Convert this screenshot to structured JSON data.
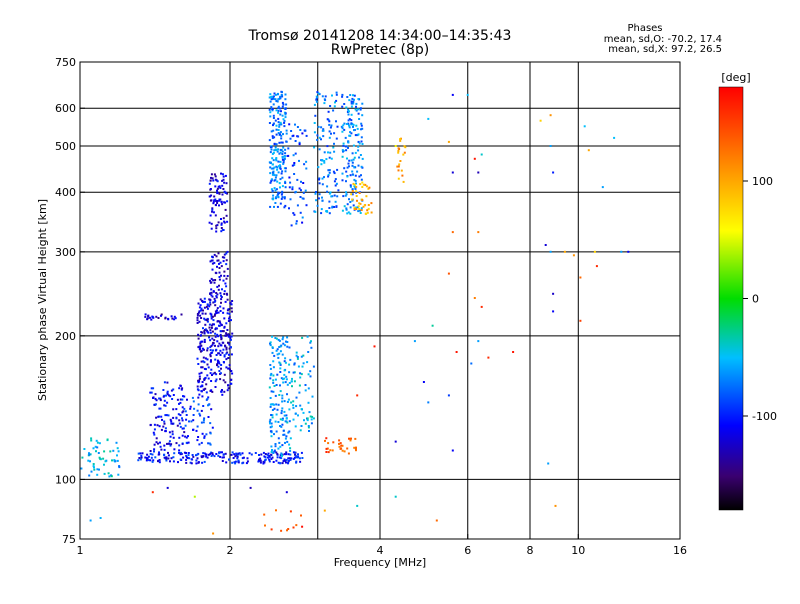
{
  "chart_data": {
    "type": "scatter",
    "title": "Tromsø 20141208 14:34:00–14:35:43",
    "subtitle": "RwPretec (8p)",
    "xlabel": "Frequency [MHz]",
    "ylabel": "Stationary phase Virtual Height [km]",
    "x_scale": "log",
    "y_scale": "log",
    "xlim": [
      1,
      16
    ],
    "ylim": [
      75,
      750
    ],
    "x_ticks": [
      1,
      2,
      4,
      6,
      8,
      10,
      16
    ],
    "x_tick_labels": [
      "1",
      "2",
      "4",
      "6",
      "8",
      "10",
      "16"
    ],
    "x_gridlines": [
      2,
      3,
      4,
      6,
      8,
      10
    ],
    "y_ticks": [
      75,
      100,
      200,
      300,
      400,
      500,
      600,
      750
    ],
    "y_tick_labels": [
      "75",
      "100",
      "200",
      "300",
      "400",
      "500",
      "600",
      "750"
    ],
    "y_gridlines": [
      100,
      200,
      300,
      400,
      500,
      600
    ],
    "grid": true,
    "phase_info": {
      "heading": "Phases",
      "line_o": "mean, sd,O: -70.2, 17.4",
      "line_x": "mean, sd,X:  97.2, 26.5"
    },
    "colorbar": {
      "label": "[deg]",
      "range": [
        -180,
        180
      ],
      "ticks": [
        100,
        0,
        -100
      ],
      "tick_labels": [
        "100",
        "0",
        "-100"
      ],
      "colormap": "rainbow"
    },
    "clusters": [
      {
        "x": [
          1.0,
          1.2
        ],
        "y": [
          100,
          122
        ],
        "n": 60,
        "phase": -50
      },
      {
        "x": [
          1.38,
          1.62
        ],
        "y": [
          112,
          160
        ],
        "n": 120,
        "phase": -110
      },
      {
        "x": [
          1.6,
          1.85
        ],
        "y": [
          118,
          150
        ],
        "n": 70,
        "phase": -95
      },
      {
        "x": [
          1.35,
          1.6
        ],
        "y": [
          216,
          222
        ],
        "n": 25,
        "phase": -125
      },
      {
        "x": [
          1.72,
          2.02
        ],
        "y": [
          150,
          240
        ],
        "n": 320,
        "phase": -118
      },
      {
        "x": [
          1.82,
          1.98
        ],
        "y": [
          240,
          300
        ],
        "n": 70,
        "phase": -118
      },
      {
        "x": [
          1.82,
          1.98
        ],
        "y": [
          330,
          440
        ],
        "n": 90,
        "phase": -120
      },
      {
        "x": [
          1.3,
          2.8
        ],
        "y": [
          108,
          114
        ],
        "n": 220,
        "phase": -105
      },
      {
        "x": [
          2.4,
          2.65
        ],
        "y": [
          112,
          200
        ],
        "n": 160,
        "phase": -62
      },
      {
        "x": [
          2.65,
          2.95
        ],
        "y": [
          125,
          200
        ],
        "n": 70,
        "phase": -55
      },
      {
        "x": [
          2.4,
          2.6
        ],
        "y": [
          370,
          650
        ],
        "n": 220,
        "phase": -72
      },
      {
        "x": [
          2.6,
          2.85
        ],
        "y": [
          340,
          560
        ],
        "n": 60,
        "phase": -88
      },
      {
        "x": [
          2.95,
          3.3
        ],
        "y": [
          360,
          650
        ],
        "n": 120,
        "phase": -72
      },
      {
        "x": [
          3.35,
          3.7
        ],
        "y": [
          360,
          640
        ],
        "n": 170,
        "phase": -68
      },
      {
        "x": [
          3.5,
          3.85
        ],
        "y": [
          360,
          420
        ],
        "n": 40,
        "phase": 95
      },
      {
        "x": [
          4.3,
          4.5
        ],
        "y": [
          420,
          520
        ],
        "n": 20,
        "phase": 105
      },
      {
        "x": [
          3.1,
          3.6
        ],
        "y": [
          113,
          122
        ],
        "n": 30,
        "phase": 140
      },
      {
        "x": [
          2.3,
          2.8
        ],
        "y": [
          78,
          90
        ],
        "n": 12,
        "phase": 150
      }
    ],
    "scattered_points": [
      {
        "x": 2.2,
        "y": 96,
        "phase": -130
      },
      {
        "x": 2.6,
        "y": 94,
        "phase": -120
      },
      {
        "x": 3.1,
        "y": 86,
        "phase": 100
      },
      {
        "x": 3.6,
        "y": 88,
        "phase": -40
      },
      {
        "x": 4.3,
        "y": 92,
        "phase": -40
      },
      {
        "x": 5.2,
        "y": 82,
        "phase": 130
      },
      {
        "x": 1.05,
        "y": 82,
        "phase": -60
      },
      {
        "x": 1.1,
        "y": 83,
        "phase": -55
      },
      {
        "x": 1.4,
        "y": 94,
        "phase": 160
      },
      {
        "x": 1.5,
        "y": 96,
        "phase": -120
      },
      {
        "x": 1.7,
        "y": 92,
        "phase": 40
      },
      {
        "x": 1.85,
        "y": 77,
        "phase": 110
      },
      {
        "x": 3.9,
        "y": 190,
        "phase": 170
      },
      {
        "x": 4.7,
        "y": 195,
        "phase": -60
      },
      {
        "x": 4.9,
        "y": 160,
        "phase": -110
      },
      {
        "x": 5.0,
        "y": 145,
        "phase": -70
      },
      {
        "x": 5.1,
        "y": 210,
        "phase": -30
      },
      {
        "x": 5.7,
        "y": 185,
        "phase": 170
      },
      {
        "x": 5.5,
        "y": 150,
        "phase": -90
      },
      {
        "x": 6.1,
        "y": 175,
        "phase": -75
      },
      {
        "x": 6.3,
        "y": 195,
        "phase": -60
      },
      {
        "x": 6.6,
        "y": 180,
        "phase": 160
      },
      {
        "x": 7.4,
        "y": 185,
        "phase": 170
      },
      {
        "x": 6.2,
        "y": 240,
        "phase": 120
      },
      {
        "x": 6.4,
        "y": 230,
        "phase": 160
      },
      {
        "x": 5.5,
        "y": 270,
        "phase": 140
      },
      {
        "x": 5.6,
        "y": 330,
        "phase": 130
      },
      {
        "x": 6.3,
        "y": 330,
        "phase": 120
      },
      {
        "x": 5.6,
        "y": 440,
        "phase": -120
      },
      {
        "x": 6.3,
        "y": 440,
        "phase": -130
      },
      {
        "x": 6.2,
        "y": 470,
        "phase": 170
      },
      {
        "x": 6.4,
        "y": 480,
        "phase": -40
      },
      {
        "x": 5.5,
        "y": 510,
        "phase": 100
      },
      {
        "x": 5.0,
        "y": 570,
        "phase": -50
      },
      {
        "x": 5.6,
        "y": 640,
        "phase": -110
      },
      {
        "x": 6.0,
        "y": 640,
        "phase": -50
      },
      {
        "x": 4.3,
        "y": 500,
        "phase": 60
      },
      {
        "x": 8.4,
        "y": 565,
        "phase": 80
      },
      {
        "x": 8.8,
        "y": 580,
        "phase": 110
      },
      {
        "x": 8.8,
        "y": 500,
        "phase": -60
      },
      {
        "x": 8.9,
        "y": 440,
        "phase": -100
      },
      {
        "x": 8.6,
        "y": 310,
        "phase": -120
      },
      {
        "x": 8.8,
        "y": 300,
        "phase": -60
      },
      {
        "x": 8.9,
        "y": 245,
        "phase": -125
      },
      {
        "x": 8.9,
        "y": 225,
        "phase": -110
      },
      {
        "x": 8.7,
        "y": 108,
        "phase": -60
      },
      {
        "x": 9.0,
        "y": 88,
        "phase": 110
      },
      {
        "x": 9.4,
        "y": 300,
        "phase": 100
      },
      {
        "x": 9.8,
        "y": 295,
        "phase": 110
      },
      {
        "x": 10.1,
        "y": 265,
        "phase": 130
      },
      {
        "x": 10.3,
        "y": 550,
        "phase": -50
      },
      {
        "x": 10.1,
        "y": 215,
        "phase": 150
      },
      {
        "x": 10.5,
        "y": 490,
        "phase": 100
      },
      {
        "x": 10.8,
        "y": 300,
        "phase": 80
      },
      {
        "x": 11.2,
        "y": 410,
        "phase": -60
      },
      {
        "x": 11.8,
        "y": 520,
        "phase": -50
      },
      {
        "x": 12.2,
        "y": 300,
        "phase": -60
      },
      {
        "x": 12.6,
        "y": 300,
        "phase": -110
      },
      {
        "x": 10.9,
        "y": 280,
        "phase": 160
      },
      {
        "x": 5.6,
        "y": 115,
        "phase": -110
      },
      {
        "x": 4.3,
        "y": 120,
        "phase": -120
      },
      {
        "x": 3.6,
        "y": 150,
        "phase": 160
      }
    ]
  }
}
